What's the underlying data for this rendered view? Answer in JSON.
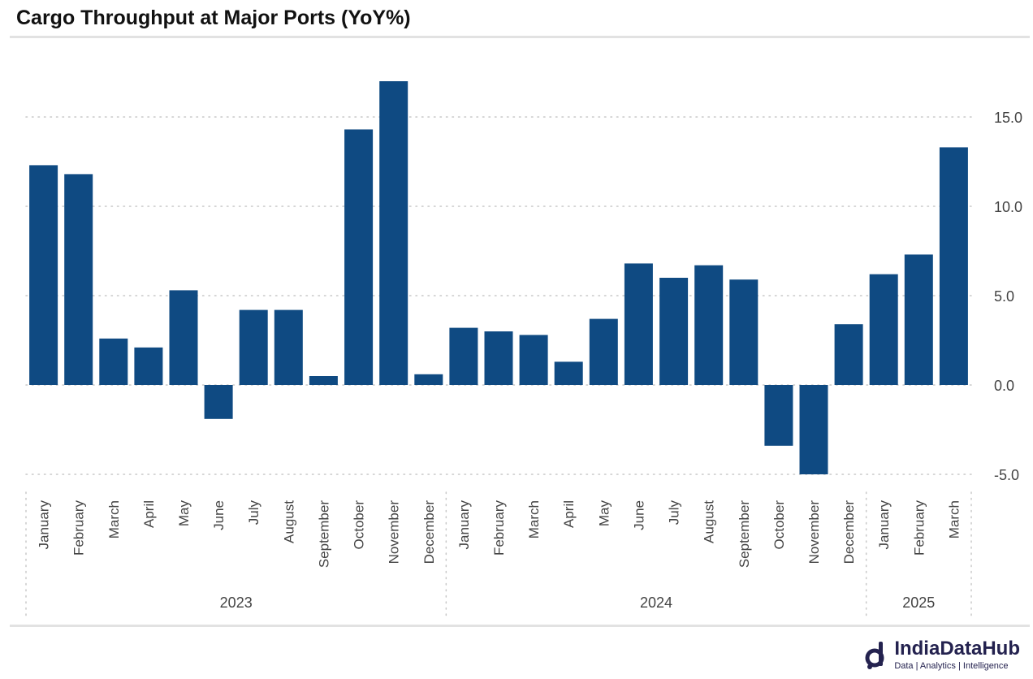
{
  "title": "Cargo Throughput at Major Ports (YoY%)",
  "brand": {
    "name": "IndiaDataHub",
    "tagline": "Data | Analytics | Intelligence"
  },
  "colors": {
    "bar": "#0f4a82",
    "grid": "#c8c8c8",
    "text": "#444444"
  },
  "chart_data": {
    "type": "bar",
    "categories": [
      "January",
      "February",
      "March",
      "April",
      "May",
      "June",
      "July",
      "August",
      "September",
      "October",
      "November",
      "December",
      "January",
      "February",
      "March",
      "April",
      "May",
      "June",
      "July",
      "August",
      "September",
      "October",
      "November",
      "December",
      "January",
      "February",
      "March"
    ],
    "groups": [
      {
        "label": "2023",
        "count": 12
      },
      {
        "label": "2024",
        "count": 12
      },
      {
        "label": "2025",
        "count": 3
      }
    ],
    "values": [
      12.3,
      11.8,
      2.6,
      2.1,
      5.3,
      -1.9,
      4.2,
      4.2,
      0.5,
      14.3,
      17.0,
      0.6,
      3.2,
      3.0,
      2.8,
      1.3,
      3.7,
      6.8,
      6.0,
      6.7,
      5.9,
      -3.4,
      -5.0,
      3.4,
      6.2,
      7.3,
      13.3
    ],
    "yticks": [
      "15.0",
      "10.0",
      "5.0",
      "0.0",
      "-5.0"
    ],
    "ytick_values": [
      15,
      10,
      5,
      0,
      -5
    ],
    "ylim": [
      -5,
      17
    ],
    "axis_position": "right",
    "grid": true
  }
}
